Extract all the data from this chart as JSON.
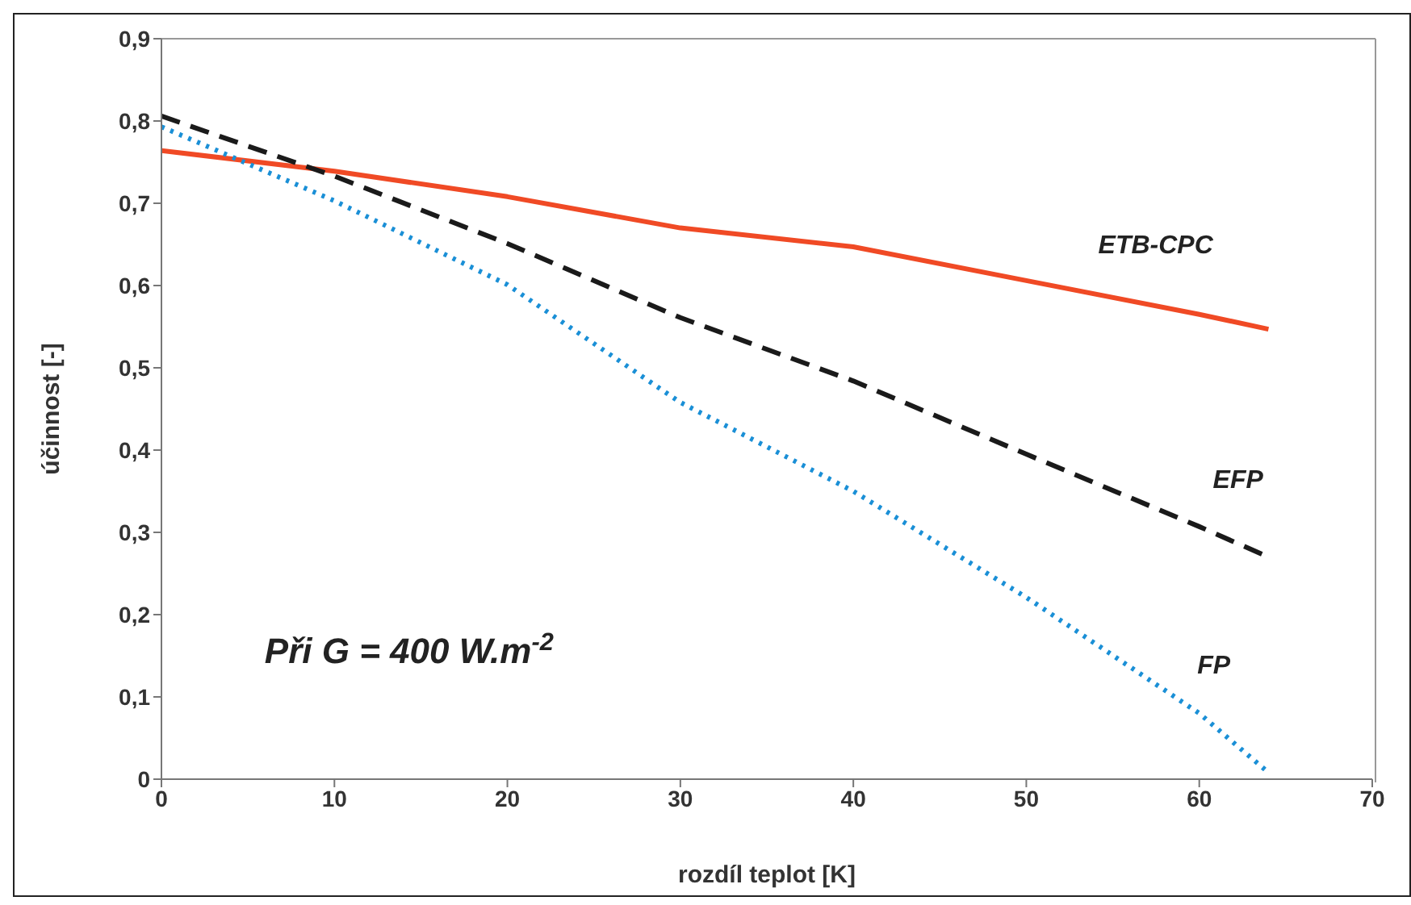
{
  "chart_data": {
    "type": "line",
    "xlabel": "rozdíl teplot [K]",
    "ylabel": "účinnost [-]",
    "annotations": [
      "Při G = 400 W.m$^{-2}$"
    ],
    "x": [
      0,
      10,
      20,
      30,
      40,
      50,
      60,
      64
    ],
    "xlim": [
      0,
      70
    ],
    "xticks": [
      0,
      10,
      20,
      30,
      40,
      50,
      60,
      70
    ],
    "ylim": [
      0,
      0.9
    ],
    "yticks": [
      0,
      {
        "value": 0.1,
        "label": "0,1"
      },
      {
        "value": 0.2,
        "label": "0,2"
      },
      {
        "value": 0.3,
        "label": "0,3"
      },
      {
        "value": 0.4,
        "label": "0,4"
      },
      {
        "value": 0.5,
        "label": "0,5"
      },
      {
        "value": 0.6,
        "label": "0,6"
      },
      {
        "value": 0.7,
        "label": "0,7"
      },
      {
        "value": 0.8,
        "label": "0,8"
      },
      {
        "value": 0.9,
        "label": "0,9"
      }
    ],
    "marker": "none",
    "series": [
      {
        "name": "ETB-CPC",
        "color": "#f04a25",
        "line_style": "solid",
        "values": [
          0.764,
          0.739,
          0.708,
          0.67,
          0.647,
          0.606,
          0.565,
          0.547
        ]
      },
      {
        "name": "EFP",
        "color": "#1a1a1a",
        "line_style": "dashed",
        "values": [
          0.806,
          0.733,
          0.651,
          0.561,
          0.484,
          0.395,
          0.307,
          0.27
        ]
      },
      {
        "name": "FP",
        "color": "#1a8fd6",
        "line_style": "dotted",
        "values": [
          0.793,
          0.703,
          0.601,
          0.458,
          0.35,
          0.221,
          0.08,
          0.008
        ]
      }
    ]
  }
}
